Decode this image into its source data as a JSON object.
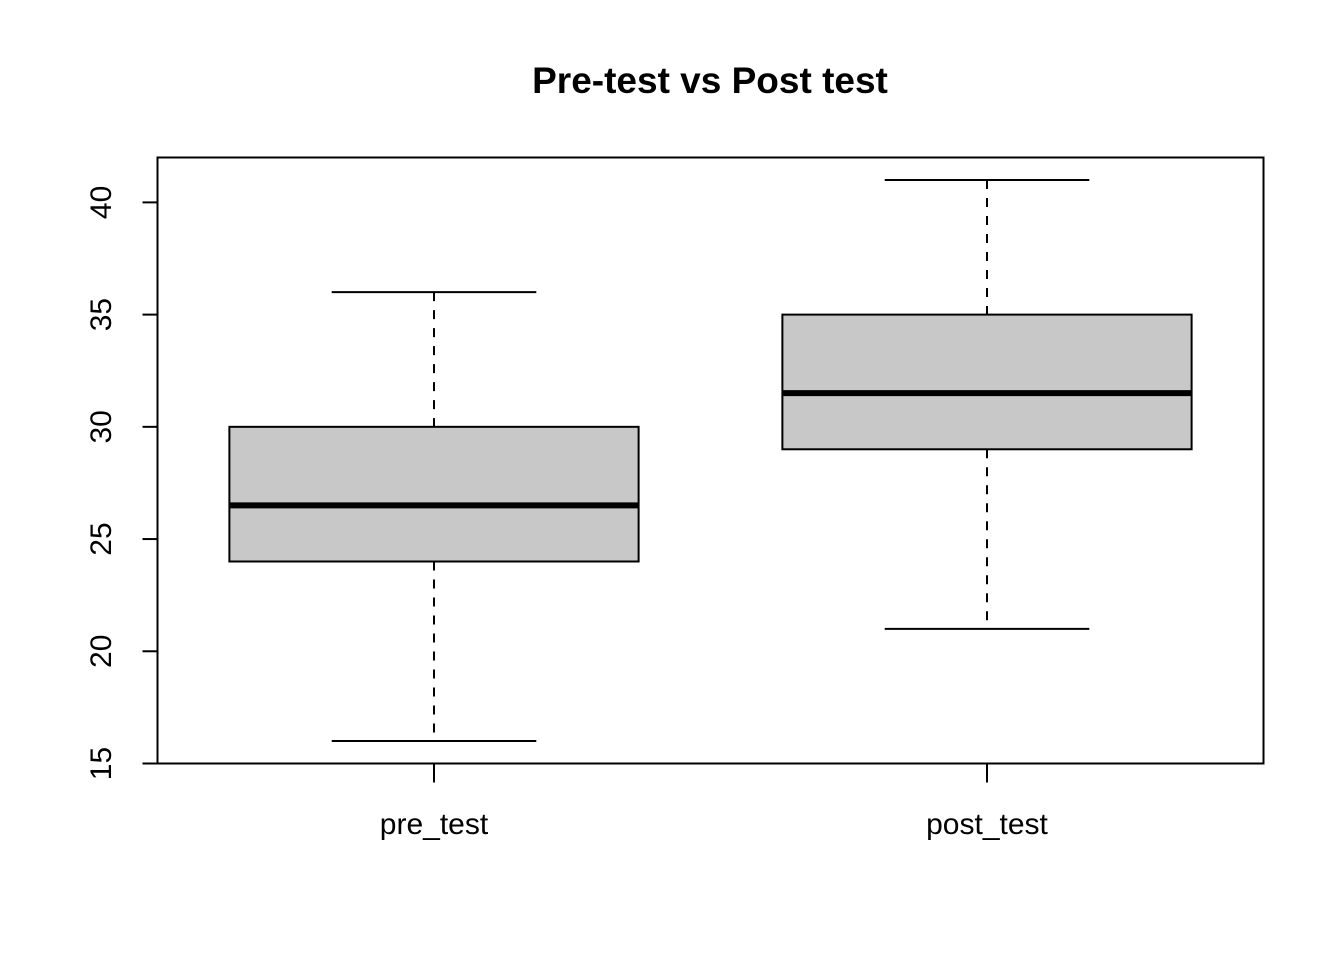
{
  "chart_data": {
    "type": "boxplot",
    "title": "Pre-test vs Post test",
    "xlabel": "",
    "ylabel": "",
    "categories": [
      "pre_test",
      "post_test"
    ],
    "boxes": [
      {
        "category": "pre_test",
        "whisker_low": 16,
        "q1": 24,
        "median": 26.5,
        "q3": 30,
        "whisker_high": 36
      },
      {
        "category": "post_test",
        "whisker_low": 21,
        "q1": 29,
        "median": 31.5,
        "q3": 35,
        "whisker_high": 41
      }
    ],
    "ylim": [
      15,
      42
    ],
    "yticks": [
      15,
      20,
      25,
      30,
      35,
      40
    ],
    "ytick_labels": [
      "15",
      "20",
      "25",
      "30",
      "35",
      "40"
    ],
    "grid": false,
    "colors": {
      "box_fill": "#c8c8c8",
      "line": "#000000",
      "background": "#ffffff"
    }
  }
}
